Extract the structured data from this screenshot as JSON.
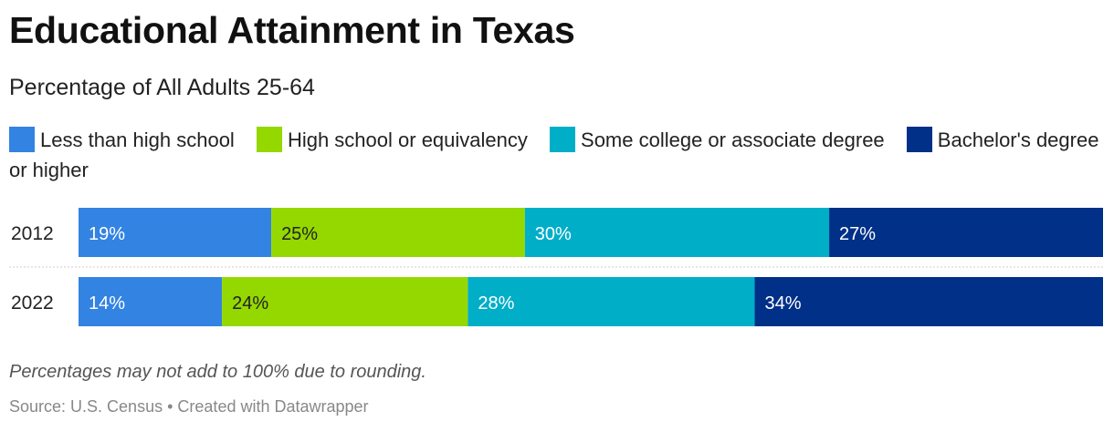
{
  "title": "Educational Attainment in Texas",
  "subtitle": "Percentage of All Adults 25-64",
  "note": "Percentages may not add to 100% due to rounding.",
  "footer": {
    "source": "Source: U.S. Census",
    "separator": "•",
    "credit": "Created with Datawrapper"
  },
  "chart_data": {
    "type": "bar",
    "orientation": "horizontal",
    "stacked": true,
    "categories": [
      "2012",
      "2022"
    ],
    "series": [
      {
        "name": "Less than high school",
        "values": [
          19,
          14
        ],
        "labels": [
          "19%",
          "14%"
        ],
        "color": "#3383e3"
      },
      {
        "name": "High school or equivalency",
        "values": [
          25,
          24
        ],
        "labels": [
          "25%",
          "24%"
        ],
        "color": "#94d800"
      },
      {
        "name": "Some college or associate degree",
        "values": [
          30,
          28
        ],
        "labels": [
          "30%",
          "28%"
        ],
        "color": "#00aec8"
      },
      {
        "name": "Bachelor's degree or higher",
        "values": [
          27,
          34
        ],
        "labels": [
          "27%",
          "34%"
        ],
        "color": "#003087"
      }
    ],
    "legend": "top-left",
    "grid": false
  }
}
